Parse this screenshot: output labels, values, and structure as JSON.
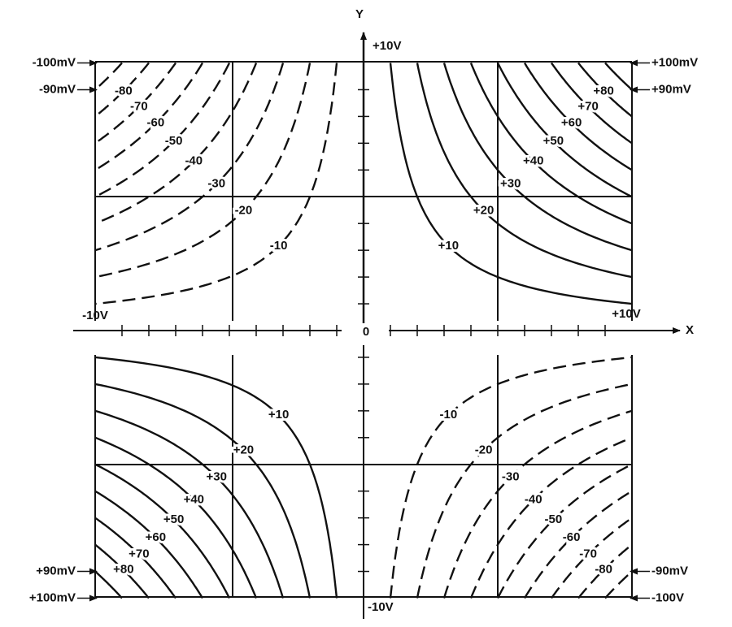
{
  "axes": {
    "x_label": "X",
    "y_label": "Y",
    "origin": "0",
    "x_min": "-10V",
    "x_max": "+10V",
    "y_min": "-10V",
    "y_max": "+10V"
  },
  "quadrants": [
    {
      "contours": [
        "-10",
        "-20",
        "-30",
        "-40",
        "-50",
        "-60",
        "-70",
        "-80"
      ],
      "edge_labels": [
        "-90mV",
        "-100mV"
      ]
    },
    {
      "contours": [
        "+10",
        "+20",
        "+30",
        "+40",
        "+50",
        "+60",
        "+70",
        "+80"
      ],
      "edge_labels": [
        "+90mV",
        "+100mV"
      ]
    },
    {
      "contours": [
        "+10",
        "+20",
        "+30",
        "+40",
        "+50",
        "+60",
        "+70",
        "+80"
      ],
      "edge_labels": [
        "+90mV",
        "+100mV"
      ]
    },
    {
      "contours": [
        "-10",
        "-20",
        "-30",
        "-40",
        "-50",
        "-60",
        "-70",
        "-80"
      ],
      "edge_labels": [
        "-90mV",
        "-100V"
      ]
    }
  ]
}
